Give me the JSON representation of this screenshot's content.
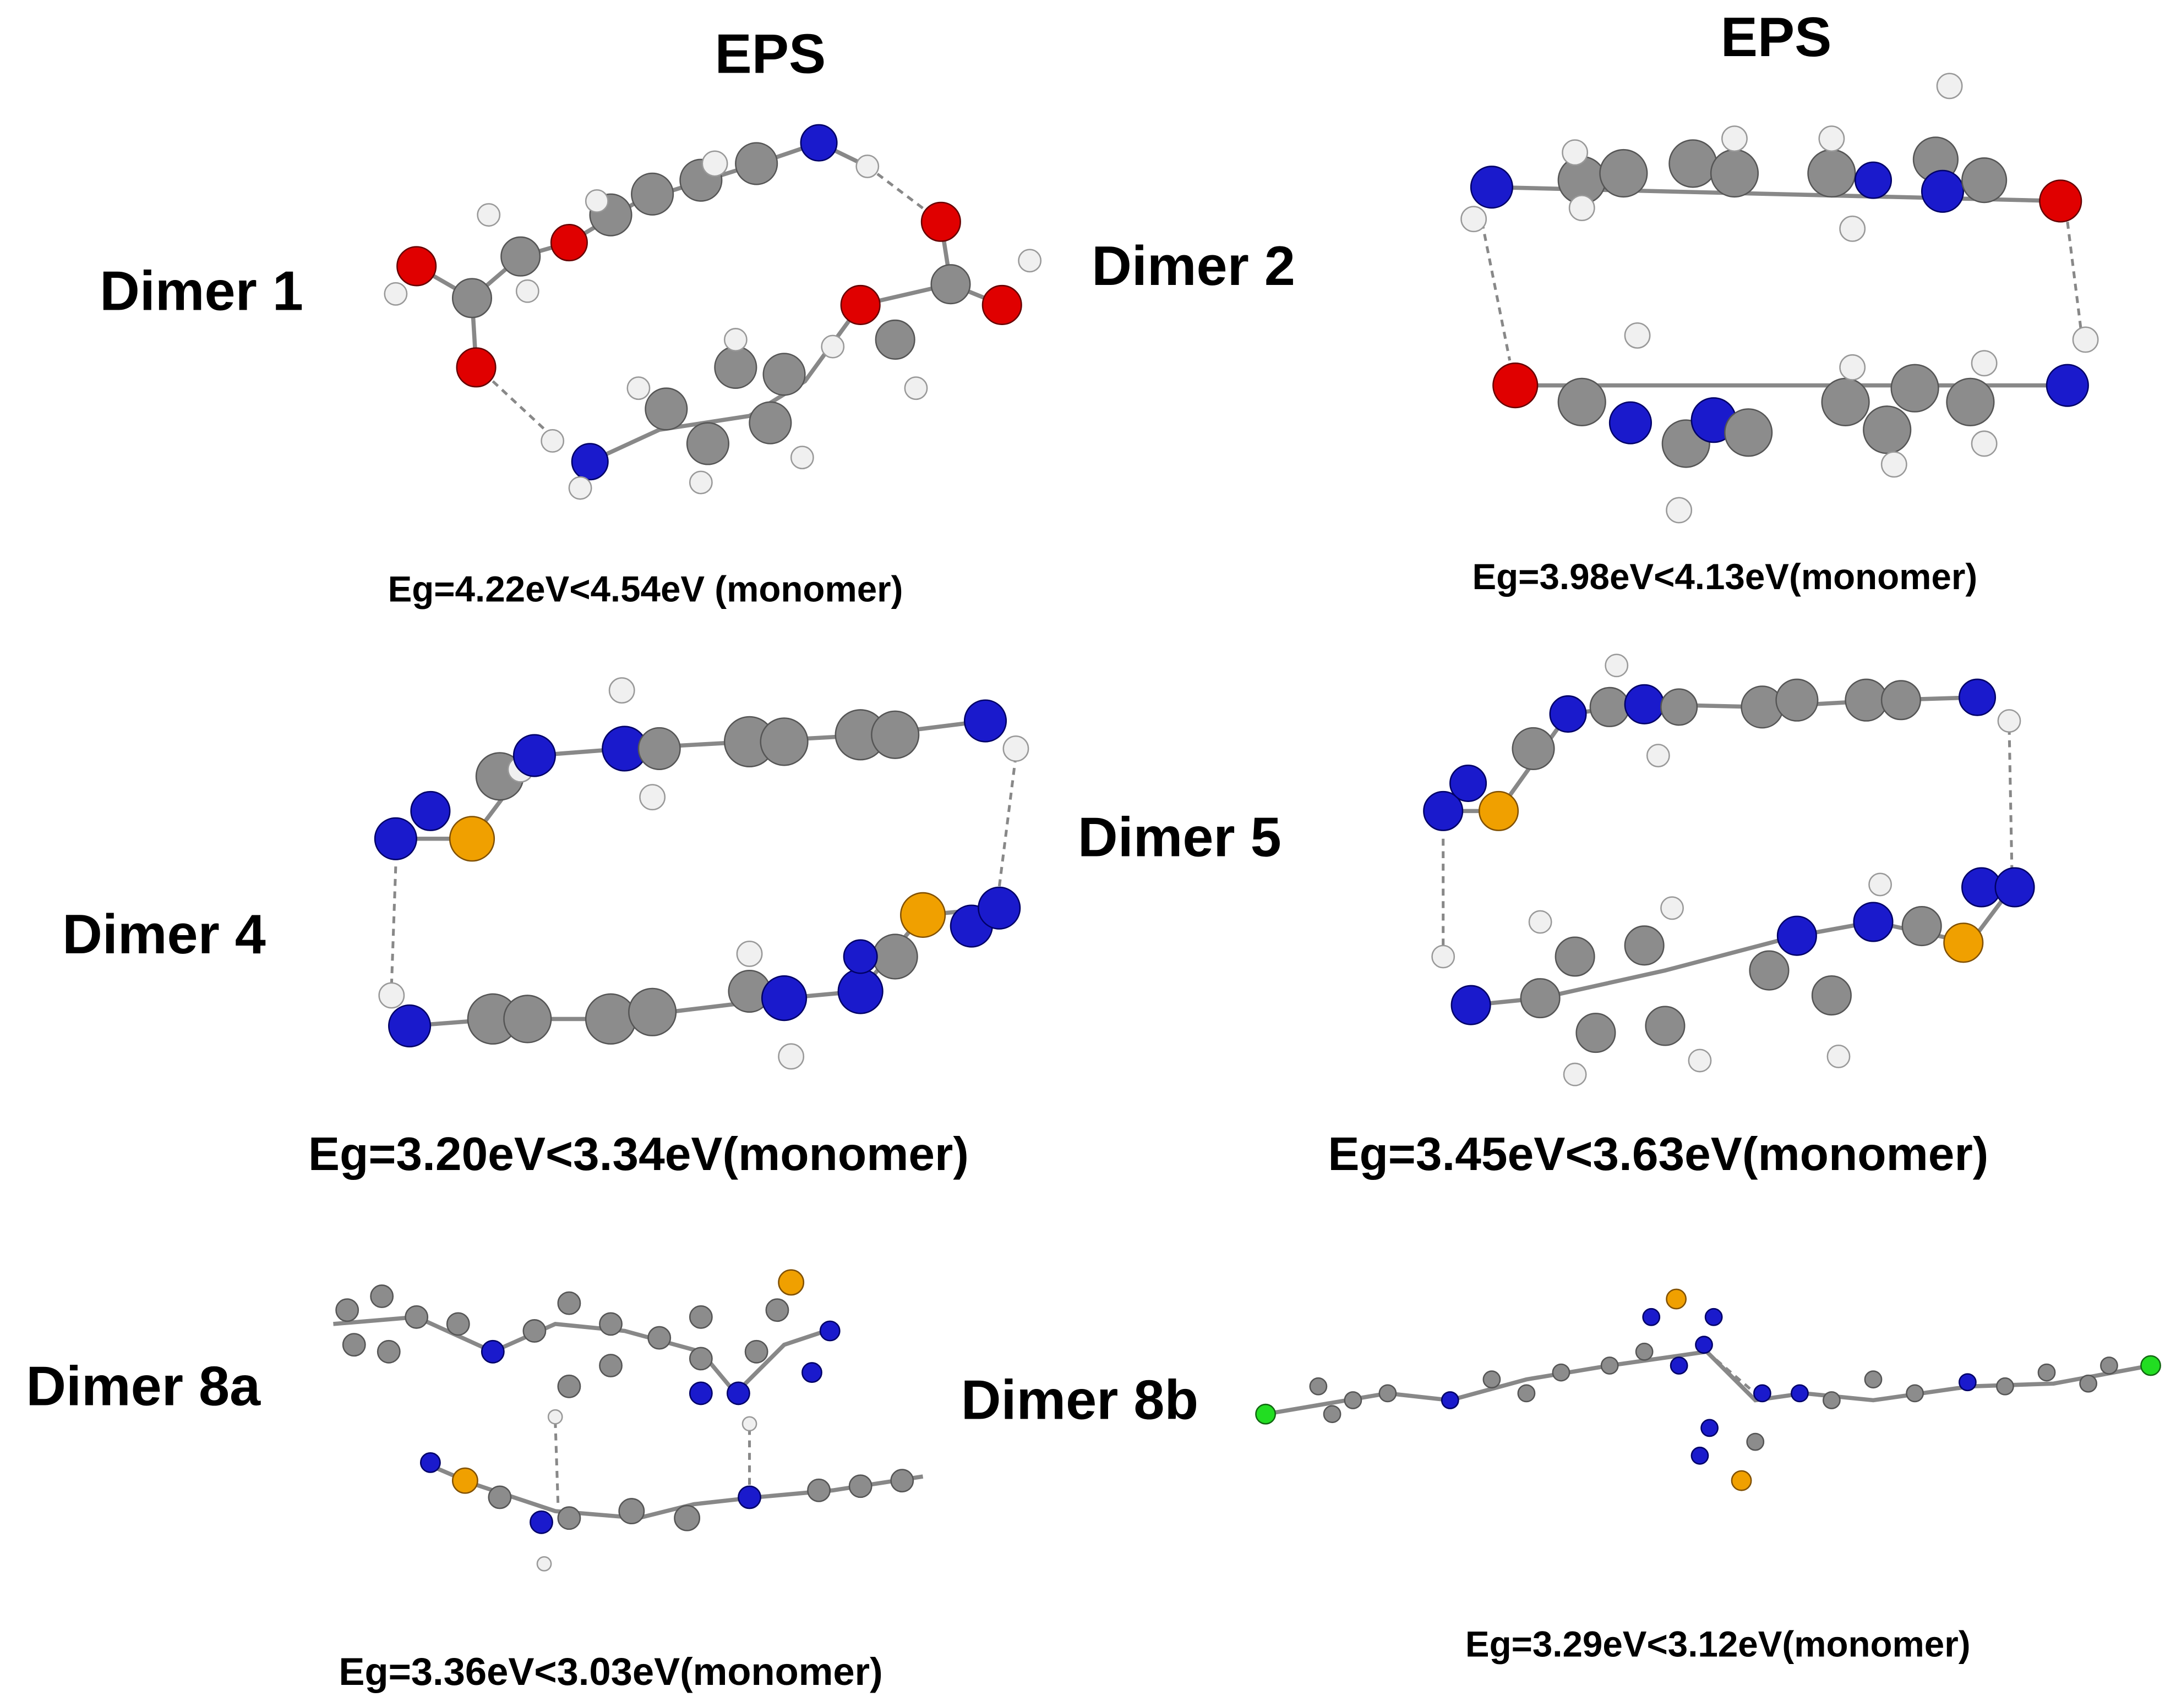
{
  "headings": [
    "EPS",
    "EPS"
  ],
  "panels": [
    {
      "label": "Dimer 1",
      "caption": "Eg=4.22eV<4.54eV (monomer)"
    },
    {
      "label": "Dimer 2",
      "caption": "Eg=3.98eV<4.13eV(monomer)"
    },
    {
      "label": "Dimer 4",
      "caption": "Eg=3.20eV<3.34eV(monomer)"
    },
    {
      "label": "Dimer 5",
      "caption": "Eg=3.45eV<3.63eV(monomer)"
    },
    {
      "label": "Dimer 8a",
      "caption": "Eg=3.36eV<3.03eV(monomer)"
    },
    {
      "label": "Dimer 8b",
      "caption": "Eg=3.29eV<3.12eV(monomer)"
    }
  ]
}
